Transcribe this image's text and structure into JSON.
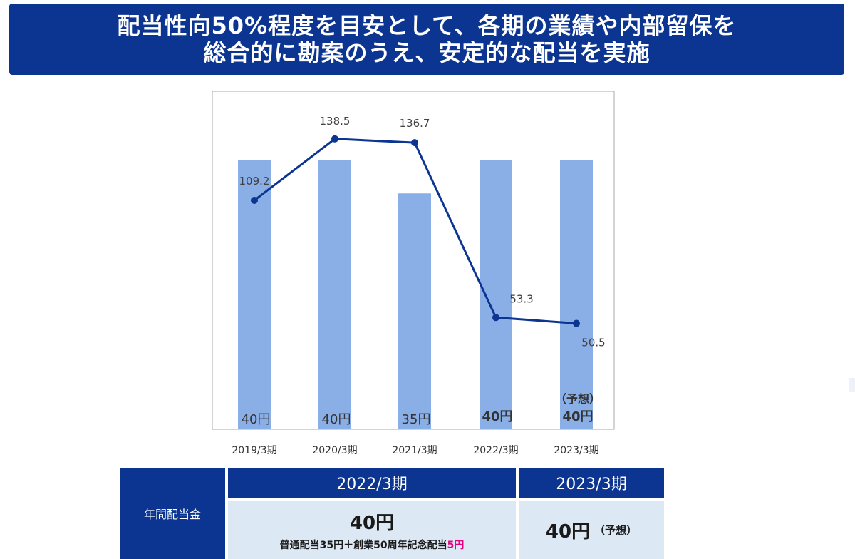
{
  "banner": {
    "line1": "配当性向50%程度を目安として、各期の業績や内部留保を",
    "line2": "総合的に勘案のうえ、安定的な配当を実施"
  },
  "chart_data": {
    "type": "bar",
    "categories": [
      "2019/3期",
      "2020/3期",
      "2021/3期",
      "2022/3期",
      "2023/3期"
    ],
    "bar_values": [
      40,
      40,
      35,
      40,
      40
    ],
    "bar_labels": [
      "40円",
      "40円",
      "35円",
      "40円",
      "40円"
    ],
    "bar_forecast_note": "（予想）",
    "line_values": [
      109.2,
      138.5,
      136.7,
      53.3,
      50.5
    ],
    "line_labels": [
      "109.2",
      "138.5",
      "136.7",
      "53.3",
      "50.5"
    ],
    "bar_color": "#8aaee6",
    "line_color": "#0b3590"
  },
  "table": {
    "row_header": "年間配当金",
    "col_2022": "2022/3期",
    "col_2023": "2023/3期",
    "val_2022": "40円",
    "note_2022_prefix": "普通配当35円＋創業50周年記念配当",
    "note_2022_highlight": "5円",
    "val_2023": "40円",
    "val_2023_note": "（予想）"
  }
}
